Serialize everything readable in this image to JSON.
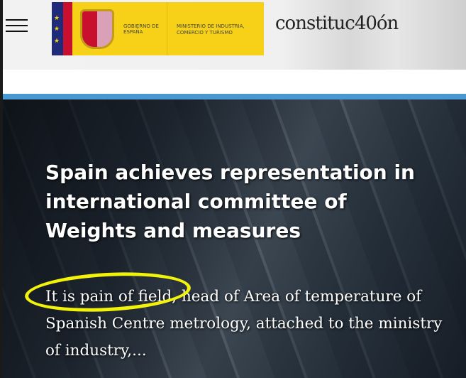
{
  "header": {
    "menu_icon": "hamburger-icon",
    "logo": {
      "gobierno": "GOBIERNO DE ESPAÑA",
      "ministerio": "MINISTERIO DE INDUSTRIA, COMERCIO Y TURISMO"
    },
    "constitucion_logo": "constituc40ón"
  },
  "colors": {
    "accent_stripe": "#4a98d2",
    "highlight": "#f2f20a",
    "logo_yellow": "#f7d117"
  },
  "article": {
    "title": "Spain achieves representation in international committee of Weights and measures",
    "excerpt": "It is pain of field, head of Area of temperature of Spanish Centre metrology, attached to the ministry of industry,..."
  }
}
